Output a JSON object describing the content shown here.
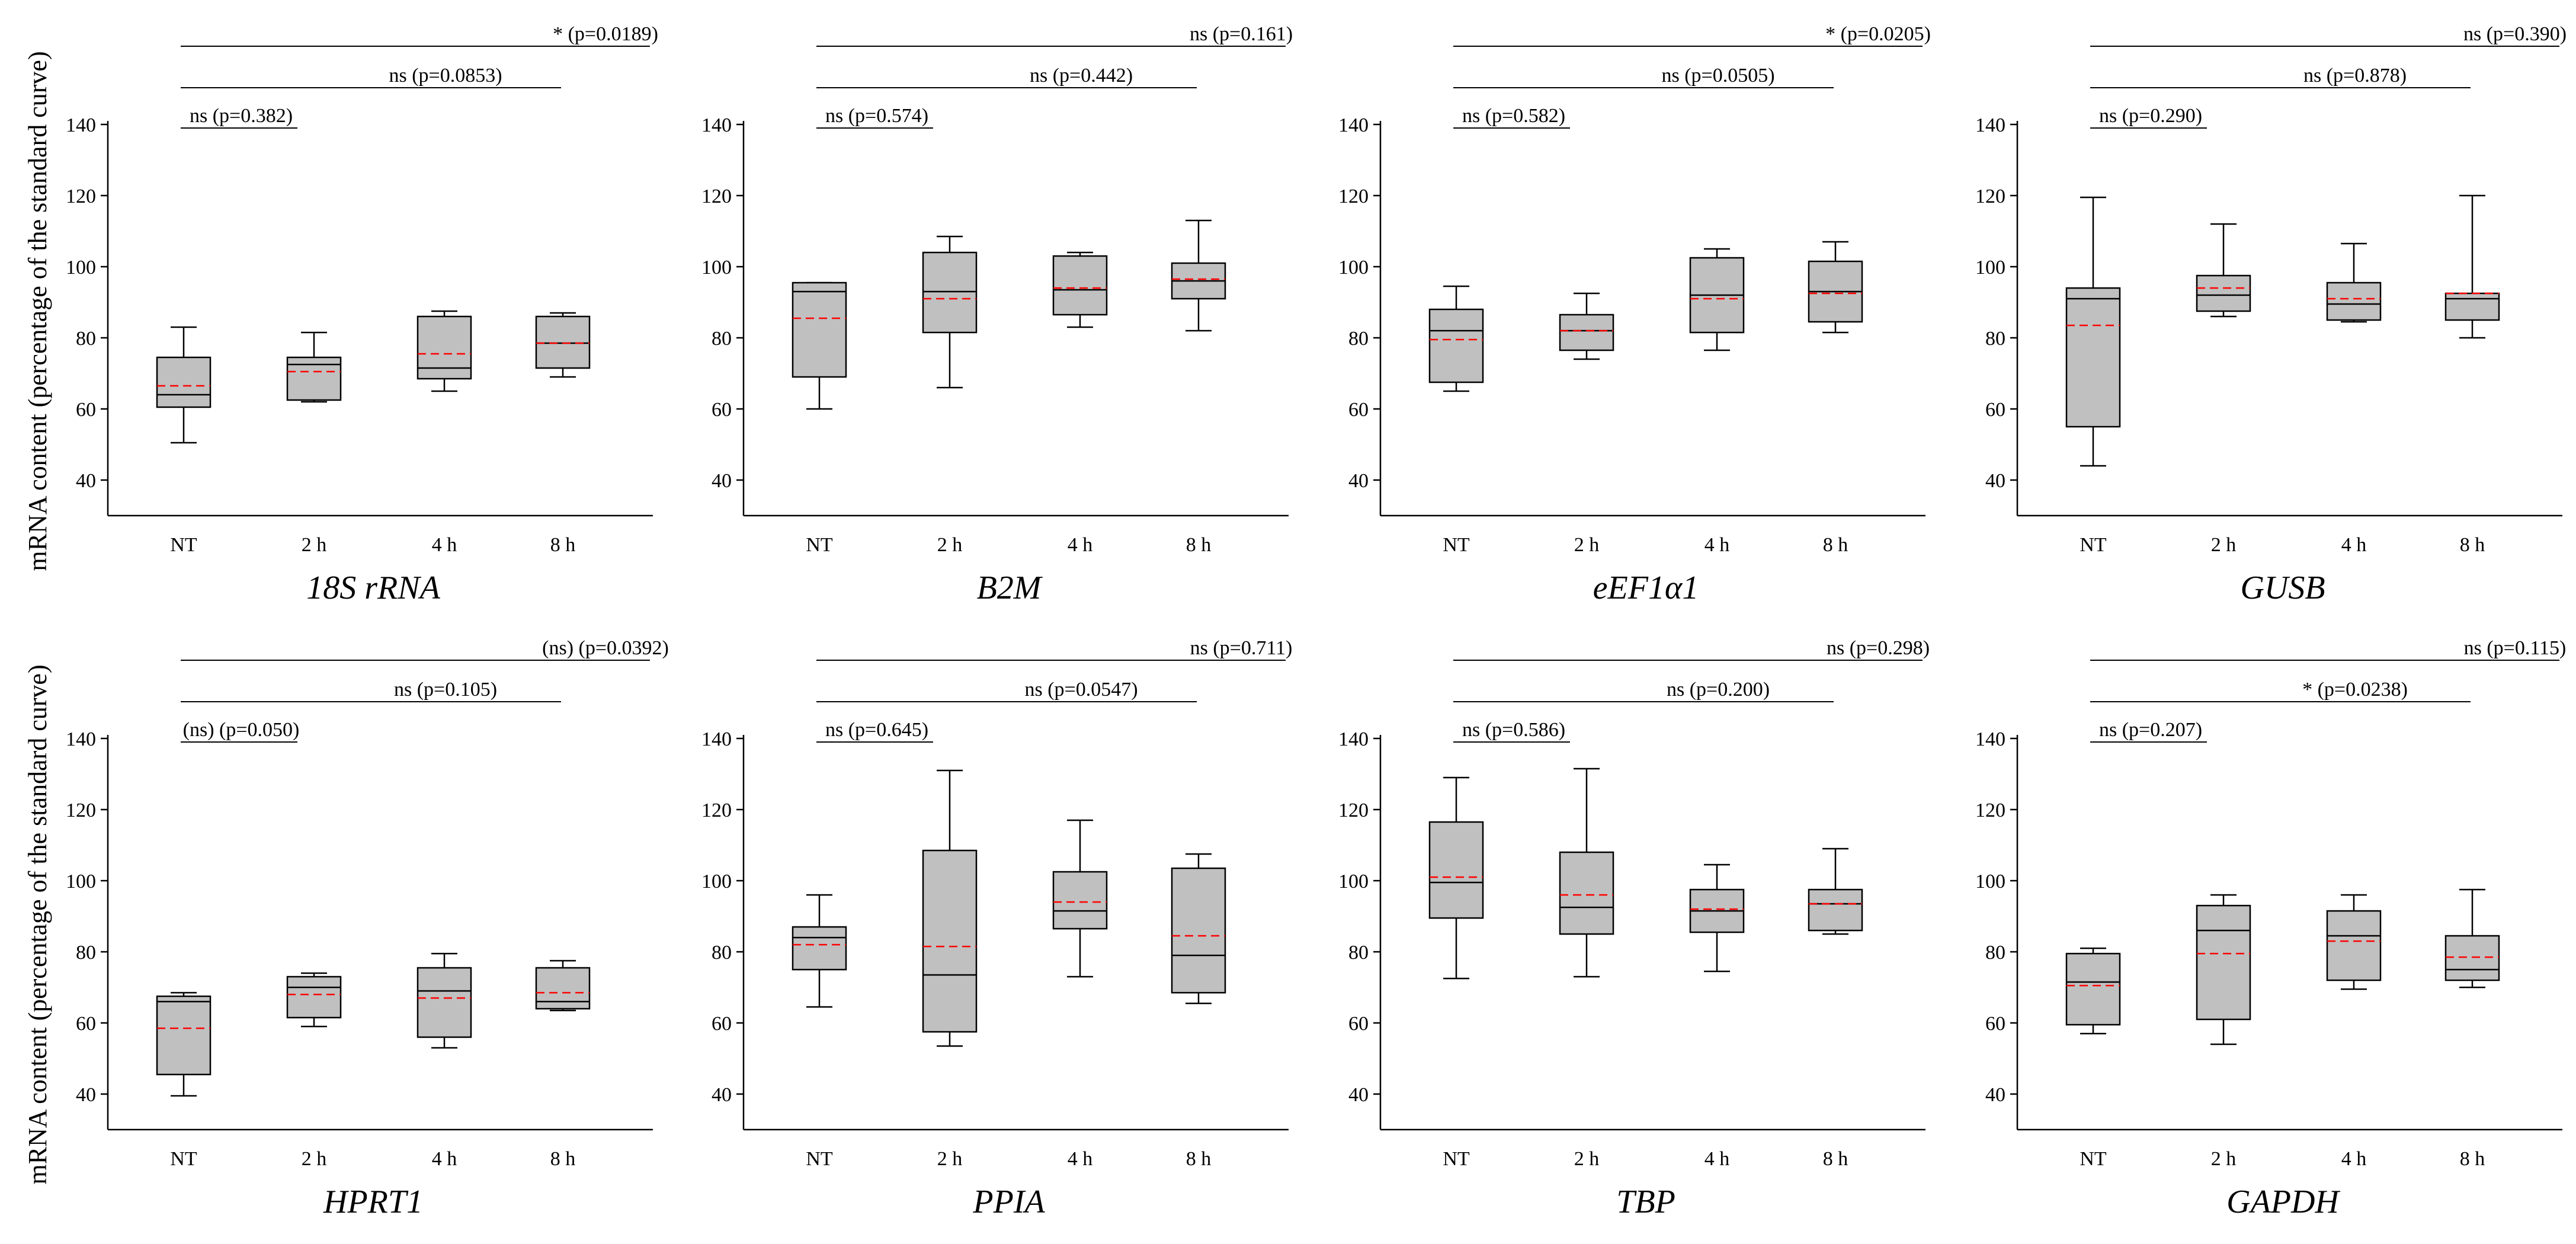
{
  "figure": {
    "ylabel": "mRNA content (percentage of the standard curve)",
    "colors": {
      "box_fill": "#c0c0c0",
      "mean_line": "#ff0000",
      "median_line": "#000000",
      "axis": "#000000"
    }
  },
  "chart_data": [
    {
      "type": "box",
      "title": "18S rRNA",
      "categories": [
        "NT",
        "2 h",
        "4 h",
        "8 h"
      ],
      "ylim": [
        30,
        140
      ],
      "yticks": [
        40,
        60,
        80,
        100,
        120,
        140
      ],
      "boxes": [
        {
          "min": 50.5,
          "q1": 60.5,
          "median": 64,
          "q3": 74.5,
          "max": 83,
          "mean": 66.5
        },
        {
          "min": 62,
          "q1": 62.5,
          "median": 72.5,
          "q3": 74.5,
          "max": 81.5,
          "mean": 70.5
        },
        {
          "min": 65,
          "q1": 68.5,
          "median": 71.5,
          "q3": 86,
          "max": 87.5,
          "mean": 75.5
        },
        {
          "min": 69,
          "q1": 71.5,
          "median": 78.5,
          "q3": 86,
          "max": 87,
          "mean": 78.5
        }
      ],
      "comparisons": [
        {
          "label": "* (p=0.0189)",
          "to": 3
        },
        {
          "label": "ns (p=0.0853)",
          "to": 2
        },
        {
          "label": "ns (p=0.382)",
          "to": 1
        }
      ]
    },
    {
      "type": "box",
      "title": "B2M",
      "categories": [
        "NT",
        "2 h",
        "4 h",
        "8 h"
      ],
      "ylim": [
        30,
        140
      ],
      "yticks": [
        40,
        60,
        80,
        100,
        120,
        140
      ],
      "boxes": [
        {
          "min": 60,
          "q1": 69,
          "median": 93,
          "q3": 95.5,
          "max": 95.5,
          "mean": 85.5
        },
        {
          "min": 66,
          "q1": 81.5,
          "median": 93,
          "q3": 104,
          "max": 108.5,
          "mean": 91
        },
        {
          "min": 83,
          "q1": 86.5,
          "median": 93.5,
          "q3": 103,
          "max": 104,
          "mean": 94
        },
        {
          "min": 82,
          "q1": 91,
          "median": 96,
          "q3": 101,
          "max": 113,
          "mean": 96.5
        }
      ],
      "comparisons": [
        {
          "label": "ns (p=0.161)",
          "to": 3
        },
        {
          "label": "ns (p=0.442)",
          "to": 2
        },
        {
          "label": "ns (p=0.574)",
          "to": 1
        }
      ]
    },
    {
      "type": "box",
      "title": "eEF1α1",
      "categories": [
        "NT",
        "2 h",
        "4 h",
        "8 h"
      ],
      "ylim": [
        30,
        140
      ],
      "yticks": [
        40,
        60,
        80,
        100,
        120,
        140
      ],
      "boxes": [
        {
          "min": 65,
          "q1": 67.5,
          "median": 82,
          "q3": 88,
          "max": 94.5,
          "mean": 79.5
        },
        {
          "min": 74,
          "q1": 76.5,
          "median": 82,
          "q3": 86.5,
          "max": 92.5,
          "mean": 82
        },
        {
          "min": 76.5,
          "q1": 81.5,
          "median": 92,
          "q3": 102.5,
          "max": 105,
          "mean": 91
        },
        {
          "min": 81.5,
          "q1": 84.5,
          "median": 93,
          "q3": 101.5,
          "max": 107,
          "mean": 92.5
        }
      ],
      "comparisons": [
        {
          "label": "* (p=0.0205)",
          "to": 3
        },
        {
          "label": "ns (p=0.0505)",
          "to": 2
        },
        {
          "label": "ns (p=0.582)",
          "to": 1
        }
      ]
    },
    {
      "type": "box",
      "title": "GUSB",
      "categories": [
        "NT",
        "2 h",
        "4 h",
        "8 h"
      ],
      "ylim": [
        30,
        140
      ],
      "yticks": [
        40,
        60,
        80,
        100,
        120,
        140
      ],
      "boxes": [
        {
          "min": 44,
          "q1": 55,
          "median": 91,
          "q3": 94,
          "max": 119.5,
          "mean": 83.5
        },
        {
          "min": 86,
          "q1": 87.5,
          "median": 92,
          "q3": 97.5,
          "max": 112,
          "mean": 94
        },
        {
          "min": 84.5,
          "q1": 85,
          "median": 89.5,
          "q3": 95.5,
          "max": 106.5,
          "mean": 91
        },
        {
          "min": 80,
          "q1": 85,
          "median": 91,
          "q3": 92.5,
          "max": 120,
          "mean": 92.5
        }
      ],
      "comparisons": [
        {
          "label": "ns (p=0.390)",
          "to": 3
        },
        {
          "label": "ns (p=0.878)",
          "to": 2
        },
        {
          "label": "ns (p=0.290)",
          "to": 1
        }
      ]
    },
    {
      "type": "box",
      "title": "HPRT1",
      "categories": [
        "NT",
        "2 h",
        "4 h",
        "8 h"
      ],
      "ylim": [
        30,
        140
      ],
      "yticks": [
        40,
        60,
        80,
        100,
        120,
        140
      ],
      "boxes": [
        {
          "min": 39.5,
          "q1": 45.5,
          "median": 66,
          "q3": 67.5,
          "max": 68.5,
          "mean": 58.5
        },
        {
          "min": 59,
          "q1": 61.5,
          "median": 70,
          "q3": 73,
          "max": 74,
          "mean": 68
        },
        {
          "min": 53,
          "q1": 56,
          "median": 69,
          "q3": 75.5,
          "max": 79.5,
          "mean": 67
        },
        {
          "min": 63.5,
          "q1": 64,
          "median": 66,
          "q3": 75.5,
          "max": 77.5,
          "mean": 68.5
        }
      ],
      "comparisons": [
        {
          "label": "(ns) (p=0.0392)",
          "to": 3
        },
        {
          "label": "ns (p=0.105)",
          "to": 2
        },
        {
          "label": "(ns) (p=0.050)",
          "to": 1
        }
      ]
    },
    {
      "type": "box",
      "title": "PPIA",
      "categories": [
        "NT",
        "2 h",
        "4 h",
        "8 h"
      ],
      "ylim": [
        30,
        140
      ],
      "yticks": [
        40,
        60,
        80,
        100,
        120,
        140
      ],
      "boxes": [
        {
          "min": 64.5,
          "q1": 75,
          "median": 84,
          "q3": 87,
          "max": 96,
          "mean": 82
        },
        {
          "min": 53.5,
          "q1": 57.5,
          "median": 73.5,
          "q3": 108.5,
          "max": 131,
          "mean": 81.5
        },
        {
          "min": 73,
          "q1": 86.5,
          "median": 91.5,
          "q3": 102.5,
          "max": 117,
          "mean": 94
        },
        {
          "min": 65.5,
          "q1": 68.5,
          "median": 79,
          "q3": 103.5,
          "max": 107.5,
          "mean": 84.5
        }
      ],
      "comparisons": [
        {
          "label": "ns (p=0.711)",
          "to": 3
        },
        {
          "label": "ns (p=0.0547)",
          "to": 2
        },
        {
          "label": "ns (p=0.645)",
          "to": 1
        }
      ]
    },
    {
      "type": "box",
      "title": "TBP",
      "categories": [
        "NT",
        "2 h",
        "4 h",
        "8 h"
      ],
      "ylim": [
        30,
        140
      ],
      "yticks": [
        40,
        60,
        80,
        100,
        120,
        140
      ],
      "boxes": [
        {
          "min": 72.5,
          "q1": 89.5,
          "median": 99.5,
          "q3": 116.5,
          "max": 129,
          "mean": 101
        },
        {
          "min": 73,
          "q1": 85,
          "median": 92.5,
          "q3": 108,
          "max": 131.5,
          "mean": 96
        },
        {
          "min": 74.5,
          "q1": 85.5,
          "median": 91.5,
          "q3": 97.5,
          "max": 104.5,
          "mean": 92
        },
        {
          "min": 85,
          "q1": 86,
          "median": 93.5,
          "q3": 97.5,
          "max": 109,
          "mean": 93.5
        }
      ],
      "comparisons": [
        {
          "label": "ns (p=0.298)",
          "to": 3
        },
        {
          "label": "ns (p=0.200)",
          "to": 2
        },
        {
          "label": "ns (p=0.586)",
          "to": 1
        }
      ]
    },
    {
      "type": "box",
      "title": "GAPDH",
      "categories": [
        "NT",
        "2 h",
        "4 h",
        "8 h"
      ],
      "ylim": [
        30,
        140
      ],
      "yticks": [
        40,
        60,
        80,
        100,
        120,
        140
      ],
      "boxes": [
        {
          "min": 57,
          "q1": 59.5,
          "median": 71.5,
          "q3": 79.5,
          "max": 81,
          "mean": 70.5
        },
        {
          "min": 54,
          "q1": 61,
          "median": 86,
          "q3": 93,
          "max": 96,
          "mean": 79.5
        },
        {
          "min": 69.5,
          "q1": 72,
          "median": 84.5,
          "q3": 91.5,
          "max": 96,
          "mean": 83
        },
        {
          "min": 70,
          "q1": 72,
          "median": 75,
          "q3": 84.5,
          "max": 97.5,
          "mean": 78.5
        }
      ],
      "comparisons": [
        {
          "label": "ns (p=0.115)",
          "to": 3
        },
        {
          "label": "* (p=0.0238)",
          "to": 2
        },
        {
          "label": "ns (p=0.207)",
          "to": 1
        }
      ]
    }
  ]
}
